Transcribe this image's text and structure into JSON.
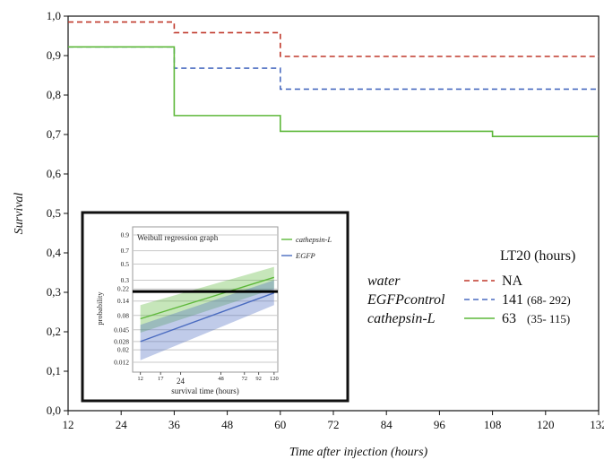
{
  "chart_data": [
    {
      "type": "line",
      "step": true,
      "xlabel": "Time after injection (hours)",
      "ylabel": "Survival",
      "xlim": [
        12,
        132
      ],
      "ylim": [
        0,
        1
      ],
      "x_ticks": [
        "12",
        "24",
        "36",
        "48",
        "60",
        "72",
        "84",
        "96",
        "108",
        "120",
        "132"
      ],
      "y_ticks": [
        "0,0",
        "0,1",
        "0,2",
        "0,3",
        "0,4",
        "0,5",
        "0,6",
        "0,7",
        "0,8",
        "0,9",
        "1,0"
      ],
      "series": [
        {
          "name": "water",
          "color": "#c0392b",
          "dash": "dashed",
          "x": [
            12,
            36,
            60,
            132
          ],
          "y": [
            0.985,
            0.958,
            0.898,
            0.898
          ]
        },
        {
          "name": "EGFPcontrol",
          "color": "#4a6bc0",
          "dash": "dashed",
          "x": [
            12,
            36,
            60,
            132
          ],
          "y": [
            0.922,
            0.868,
            0.815,
            0.815
          ]
        },
        {
          "name": "cathepsin-L",
          "color": "#5db83a",
          "dash": "solid",
          "x": [
            12,
            36,
            60,
            108,
            132
          ],
          "y": [
            0.922,
            0.748,
            0.708,
            0.695,
            0.695
          ]
        }
      ],
      "legend": {
        "title": "LT20 (hours)",
        "entries": [
          {
            "label": "water",
            "value": "NA",
            "ci": ""
          },
          {
            "label": "EGFPcontrol",
            "value": "141",
            "ci": "(68- 292)"
          },
          {
            "label": "cathepsin-L",
            "value": "63",
            "ci": "(35- 115)"
          }
        ]
      }
    },
    {
      "type": "line",
      "title": "Weibull regression graph",
      "xlabel": "survival time (hours)",
      "ylabel": "probability",
      "x_scale": "log",
      "y_scale": "weibull",
      "x_ticks": [
        "12",
        "17",
        "24",
        "48",
        "72",
        "92",
        "120"
      ],
      "y_ticks": [
        "0.9",
        "0.7",
        "0.5",
        "0.3",
        "0.22",
        "0.14",
        "0.08",
        "0.045",
        "0.028",
        "0.02",
        "0.012"
      ],
      "reference_line": 0.2,
      "series": [
        {
          "name": "cathepsin-L",
          "color": "#5db83a",
          "x": [
            12,
            120
          ],
          "y": [
            0.07,
            0.33
          ],
          "band_low": [
            0.04,
            0.22
          ],
          "band_high": [
            0.12,
            0.46
          ]
        },
        {
          "name": "EGFP",
          "color": "#4a6bc0",
          "x": [
            12,
            120
          ],
          "y": [
            0.028,
            0.19
          ],
          "band_low": [
            0.013,
            0.12
          ],
          "band_high": [
            0.055,
            0.3
          ]
        }
      ]
    }
  ]
}
